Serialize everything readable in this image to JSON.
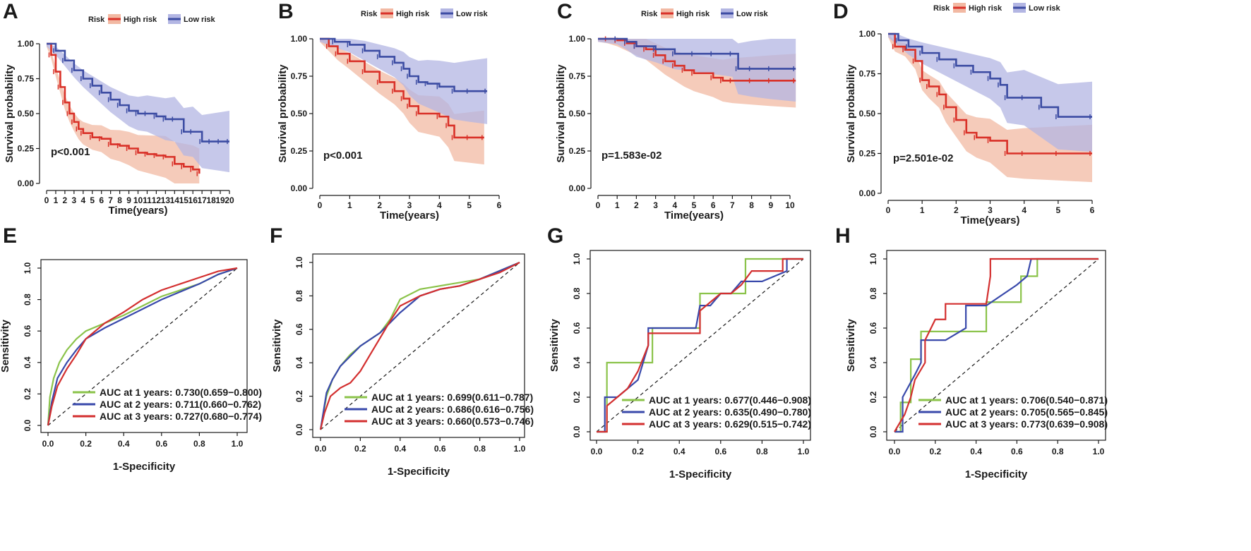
{
  "chart_data": [
    {
      "type": "line",
      "subtype": "kaplan-meier",
      "panel": "A",
      "legend": {
        "title": "Risk",
        "entries": [
          "High risk",
          "Low risk"
        ],
        "position": "top"
      },
      "xlabel": "Time(years)",
      "ylabel": "Survival probability",
      "xticks": [
        "0",
        "1",
        "2",
        "3",
        "4",
        "5",
        "6",
        "7",
        "8",
        "9",
        "10",
        "11",
        "12",
        "13",
        "14",
        "15",
        "16",
        "17",
        "18",
        "19",
        "20"
      ],
      "yticks": [
        "0.00",
        "0.25",
        "0.50",
        "0.75",
        "1.00"
      ],
      "xlim": [
        0,
        20
      ],
      "ylim": [
        0,
        1
      ],
      "pvalue": "p<0.001",
      "series": [
        {
          "name": "High risk",
          "color": "#d93128",
          "band": "#f2b9a3",
          "x": [
            0,
            0.5,
            1,
            1.5,
            2,
            2.5,
            3,
            3.5,
            4,
            5,
            6,
            7,
            8,
            9,
            10,
            11,
            12,
            13,
            14,
            15,
            16,
            16.7
          ],
          "y": [
            1.0,
            0.92,
            0.8,
            0.69,
            0.58,
            0.5,
            0.44,
            0.39,
            0.36,
            0.33,
            0.32,
            0.28,
            0.27,
            0.25,
            0.22,
            0.21,
            0.2,
            0.19,
            0.14,
            0.12,
            0.1,
            0.07
          ]
        },
        {
          "name": "Low risk",
          "color": "#3c4ca3",
          "band": "#b3b6e3",
          "x": [
            0,
            1,
            2,
            3,
            4,
            5,
            6,
            7,
            8,
            9,
            10,
            11,
            12,
            13,
            14,
            15,
            16,
            17,
            18,
            19,
            20
          ],
          "y": [
            1.0,
            0.95,
            0.88,
            0.81,
            0.75,
            0.7,
            0.65,
            0.6,
            0.56,
            0.52,
            0.5,
            0.5,
            0.48,
            0.46,
            0.46,
            0.37,
            0.37,
            0.3,
            0.3,
            0.3,
            0.3
          ]
        }
      ]
    },
    {
      "type": "line",
      "subtype": "kaplan-meier",
      "panel": "B",
      "legend": {
        "title": "Risk",
        "entries": [
          "High risk",
          "Low risk"
        ],
        "position": "top"
      },
      "xlabel": "Time(years)",
      "ylabel": "Survival probability",
      "xticks": [
        "0",
        "1",
        "2",
        "3",
        "4",
        "5",
        "6"
      ],
      "yticks": [
        "0.00",
        "0.25",
        "0.50",
        "0.75",
        "1.00"
      ],
      "xlim": [
        0,
        6
      ],
      "ylim": [
        0,
        1
      ],
      "pvalue": "p<0.001",
      "series": [
        {
          "name": "High risk",
          "color": "#d93128",
          "band": "#f2b9a3",
          "x": [
            0,
            0.3,
            0.6,
            1,
            1.5,
            2,
            2.5,
            2.8,
            3,
            3.3,
            4,
            4.3,
            4.5,
            5,
            5.5
          ],
          "y": [
            1.0,
            0.95,
            0.9,
            0.85,
            0.78,
            0.71,
            0.65,
            0.6,
            0.55,
            0.5,
            0.48,
            0.42,
            0.34,
            0.34,
            0.34
          ]
        },
        {
          "name": "Low risk",
          "color": "#3c4ca3",
          "band": "#b3b6e3",
          "x": [
            0,
            0.5,
            1,
            1.5,
            2,
            2.5,
            2.8,
            3,
            3.3,
            3.6,
            4,
            4.5,
            5,
            5.6
          ],
          "y": [
            1.0,
            0.98,
            0.96,
            0.92,
            0.88,
            0.84,
            0.8,
            0.75,
            0.71,
            0.7,
            0.68,
            0.65,
            0.65,
            0.65
          ]
        }
      ]
    },
    {
      "type": "line",
      "subtype": "kaplan-meier",
      "panel": "C",
      "legend": {
        "title": "Risk",
        "entries": [
          "High risk",
          "Low risk"
        ],
        "position": "top"
      },
      "xlabel": "Time(years)",
      "ylabel": "Survival probability",
      "xticks": [
        "0",
        "1",
        "2",
        "3",
        "4",
        "5",
        "6",
        "7",
        "8",
        "9",
        "10"
      ],
      "yticks": [
        "0.00",
        "0.25",
        "0.50",
        "0.75",
        "1.00"
      ],
      "xlim": [
        0,
        10
      ],
      "ylim": [
        0,
        1
      ],
      "pvalue": "p=1.583e-02",
      "series": [
        {
          "name": "High risk",
          "color": "#d93128",
          "band": "#f2b9a3",
          "x": [
            0,
            0.5,
            1,
            1.5,
            2,
            2.5,
            3,
            3.5,
            4,
            4.5,
            5,
            6,
            6.5,
            7,
            8,
            9,
            10.3
          ],
          "y": [
            1.0,
            1.0,
            0.99,
            0.97,
            0.95,
            0.93,
            0.89,
            0.85,
            0.82,
            0.79,
            0.77,
            0.74,
            0.72,
            0.72,
            0.72,
            0.72,
            0.72
          ]
        },
        {
          "name": "Low risk",
          "color": "#3c4ca3",
          "band": "#b3b6e3",
          "x": [
            0,
            1,
            1.5,
            2,
            3,
            4,
            5,
            6,
            7,
            7.3,
            8,
            9,
            10.3
          ],
          "y": [
            1.0,
            1.0,
            0.98,
            0.95,
            0.93,
            0.9,
            0.9,
            0.9,
            0.9,
            0.8,
            0.8,
            0.8,
            0.8
          ]
        }
      ]
    },
    {
      "type": "line",
      "subtype": "kaplan-meier",
      "panel": "D",
      "legend": {
        "title": "Risk",
        "entries": [
          "High risk",
          "Low risk"
        ],
        "position": "top"
      },
      "xlabel": "Time(years)",
      "ylabel": "Survival probability",
      "xticks": [
        "0",
        "1",
        "2",
        "3",
        "4",
        "5",
        "6"
      ],
      "yticks": [
        "0.00",
        "0.25",
        "0.50",
        "0.75",
        "1.00"
      ],
      "xlim": [
        0,
        6
      ],
      "ylim": [
        0,
        1
      ],
      "pvalue": "p=2.501e-02",
      "series": [
        {
          "name": "High risk",
          "color": "#d93128",
          "band": "#f2b9a3",
          "x": [
            0,
            0.2,
            0.5,
            0.8,
            1,
            1.2,
            1.5,
            1.7,
            2,
            2.3,
            2.6,
            3,
            3.5,
            4,
            5,
            6
          ],
          "y": [
            1.0,
            0.92,
            0.9,
            0.83,
            0.71,
            0.67,
            0.62,
            0.54,
            0.46,
            0.38,
            0.35,
            0.33,
            0.25,
            0.25,
            0.25,
            0.25
          ]
        },
        {
          "name": "Low risk",
          "color": "#3c4ca3",
          "band": "#b3b6e3",
          "x": [
            0,
            0.3,
            0.6,
            1,
            1.5,
            2,
            2.5,
            3,
            3.3,
            3.5,
            4,
            4.5,
            5,
            6
          ],
          "y": [
            1.0,
            0.96,
            0.92,
            0.88,
            0.84,
            0.8,
            0.76,
            0.72,
            0.68,
            0.6,
            0.6,
            0.54,
            0.48,
            0.48
          ]
        }
      ]
    },
    {
      "type": "line",
      "subtype": "roc",
      "panel": "E",
      "xlabel": "1-Specificity",
      "ylabel": "Sensitivity",
      "xticks": [
        "0.0",
        "0.2",
        "0.4",
        "0.6",
        "0.8",
        "1.0"
      ],
      "yticks": [
        "0.0",
        "0.2",
        "0.4",
        "0.6",
        "0.8",
        "1.0"
      ],
      "xlim": [
        0,
        1
      ],
      "ylim": [
        0,
        1
      ],
      "series": [
        {
          "name": "AUC at 1 years: 0.730(0.659−0.800)",
          "color": "#8bc34a",
          "x": [
            0,
            0.01,
            0.03,
            0.06,
            0.1,
            0.15,
            0.2,
            0.3,
            0.4,
            0.5,
            0.6,
            0.7,
            0.8,
            0.9,
            1
          ],
          "y": [
            0,
            0.18,
            0.3,
            0.4,
            0.48,
            0.55,
            0.6,
            0.65,
            0.7,
            0.76,
            0.82,
            0.86,
            0.9,
            0.96,
            1
          ]
        },
        {
          "name": "AUC at 2 years: 0.711(0.660−0.762)",
          "color": "#3949ab",
          "x": [
            0,
            0.02,
            0.05,
            0.1,
            0.15,
            0.2,
            0.3,
            0.4,
            0.5,
            0.6,
            0.7,
            0.8,
            0.9,
            1
          ],
          "y": [
            0,
            0.15,
            0.3,
            0.4,
            0.48,
            0.55,
            0.62,
            0.68,
            0.74,
            0.8,
            0.85,
            0.9,
            0.96,
            1
          ]
        },
        {
          "name": "AUC at 3 years: 0.727(0.680−0.774)",
          "color": "#d32f2f",
          "x": [
            0,
            0.02,
            0.05,
            0.1,
            0.15,
            0.2,
            0.3,
            0.4,
            0.5,
            0.6,
            0.7,
            0.8,
            0.9,
            1
          ],
          "y": [
            0,
            0.12,
            0.25,
            0.36,
            0.45,
            0.55,
            0.65,
            0.72,
            0.8,
            0.86,
            0.9,
            0.94,
            0.98,
            1
          ]
        }
      ]
    },
    {
      "type": "line",
      "subtype": "roc",
      "panel": "F",
      "xlabel": "1-Specificity",
      "ylabel": "Sensitivity",
      "xticks": [
        "0.0",
        "0.2",
        "0.4",
        "0.6",
        "0.8",
        "1.0"
      ],
      "yticks": [
        "0.0",
        "0.2",
        "0.4",
        "0.6",
        "0.8",
        "1.0"
      ],
      "xlim": [
        0,
        1
      ],
      "ylim": [
        0,
        1
      ],
      "series": [
        {
          "name": "AUC at 1 years: 0.699(0.611−0.787)",
          "color": "#8bc34a",
          "x": [
            0,
            0.03,
            0.06,
            0.1,
            0.15,
            0.2,
            0.3,
            0.35,
            0.4,
            0.5,
            0.6,
            0.7,
            0.8,
            0.9,
            1
          ],
          "y": [
            0,
            0.2,
            0.3,
            0.38,
            0.45,
            0.5,
            0.58,
            0.66,
            0.78,
            0.84,
            0.86,
            0.88,
            0.9,
            0.95,
            1
          ]
        },
        {
          "name": "AUC at 2 years: 0.686(0.616−0.756)",
          "color": "#3949ab",
          "x": [
            0,
            0.03,
            0.06,
            0.1,
            0.15,
            0.2,
            0.3,
            0.4,
            0.5,
            0.6,
            0.7,
            0.8,
            0.9,
            1
          ],
          "y": [
            0,
            0.22,
            0.3,
            0.38,
            0.44,
            0.5,
            0.58,
            0.7,
            0.8,
            0.84,
            0.86,
            0.9,
            0.95,
            1
          ]
        },
        {
          "name": "AUC at 3 years: 0.660(0.573−0.746)",
          "color": "#d32f2f",
          "x": [
            0,
            0.02,
            0.05,
            0.1,
            0.15,
            0.2,
            0.25,
            0.3,
            0.35,
            0.4,
            0.5,
            0.6,
            0.7,
            0.8,
            0.9,
            1
          ],
          "y": [
            0,
            0.1,
            0.2,
            0.25,
            0.28,
            0.35,
            0.45,
            0.55,
            0.65,
            0.74,
            0.8,
            0.84,
            0.86,
            0.9,
            0.94,
            1
          ]
        }
      ]
    },
    {
      "type": "line",
      "subtype": "roc",
      "panel": "G",
      "xlabel": "1-Specificity",
      "ylabel": "Sensitivity",
      "xticks": [
        "0.0",
        "0.2",
        "0.4",
        "0.6",
        "0.8",
        "1.0"
      ],
      "yticks": [
        "0.0",
        "0.2",
        "0.4",
        "0.6",
        "0.8",
        "1.0"
      ],
      "xlim": [
        0,
        1
      ],
      "ylim": [
        0,
        1
      ],
      "series": [
        {
          "name": "AUC at 1 years: 0.677(0.446−0.908)",
          "color": "#8bc34a",
          "x": [
            0,
            0.05,
            0.05,
            0.27,
            0.27,
            0.5,
            0.5,
            0.72,
            0.72,
            1
          ],
          "y": [
            0,
            0,
            0.4,
            0.4,
            0.6,
            0.6,
            0.8,
            0.8,
            1,
            1
          ]
        },
        {
          "name": "AUC at 2 years: 0.635(0.490−0.780)",
          "color": "#3949ab",
          "x": [
            0,
            0.04,
            0.04,
            0.1,
            0.15,
            0.2,
            0.25,
            0.25,
            0.48,
            0.5,
            0.55,
            0.6,
            0.65,
            0.7,
            0.8,
            0.92,
            0.92,
            1
          ],
          "y": [
            0,
            0,
            0.2,
            0.2,
            0.25,
            0.3,
            0.5,
            0.6,
            0.6,
            0.73,
            0.73,
            0.8,
            0.8,
            0.87,
            0.87,
            0.93,
            1,
            1
          ]
        },
        {
          "name": "AUC at 3 years: 0.629(0.515−0.742)",
          "color": "#d32f2f",
          "x": [
            0,
            0.05,
            0.05,
            0.15,
            0.2,
            0.25,
            0.25,
            0.5,
            0.5,
            0.6,
            0.65,
            0.7,
            0.75,
            0.9,
            0.9,
            1
          ],
          "y": [
            0,
            0,
            0.15,
            0.25,
            0.35,
            0.5,
            0.57,
            0.57,
            0.7,
            0.8,
            0.8,
            0.85,
            0.93,
            0.93,
            1,
            1
          ]
        }
      ]
    },
    {
      "type": "line",
      "subtype": "roc",
      "panel": "H",
      "xlabel": "1-Specificity",
      "ylabel": "Sensitivity",
      "xticks": [
        "0.0",
        "0.2",
        "0.4",
        "0.6",
        "0.8",
        "1.0"
      ],
      "yticks": [
        "0.0",
        "0.2",
        "0.4",
        "0.6",
        "0.8",
        "1.0"
      ],
      "xlim": [
        0,
        1
      ],
      "ylim": [
        0,
        1
      ],
      "series": [
        {
          "name": "AUC at 1 years: 0.706(0.540−0.871)",
          "color": "#8bc34a",
          "x": [
            0,
            0.03,
            0.03,
            0.08,
            0.08,
            0.13,
            0.13,
            0.2,
            0.2,
            0.45,
            0.45,
            0.62,
            0.62,
            0.7,
            0.7,
            1
          ],
          "y": [
            0,
            0,
            0.17,
            0.17,
            0.42,
            0.42,
            0.58,
            0.58,
            0.58,
            0.58,
            0.75,
            0.75,
            0.9,
            0.9,
            1,
            1
          ]
        },
        {
          "name": "AUC at 2 years: 0.705(0.565−0.845)",
          "color": "#3949ab",
          "x": [
            0,
            0.04,
            0.04,
            0.1,
            0.13,
            0.13,
            0.25,
            0.35,
            0.35,
            0.45,
            0.6,
            0.65,
            0.67,
            1
          ],
          "y": [
            0,
            0,
            0.2,
            0.33,
            0.4,
            0.53,
            0.53,
            0.6,
            0.73,
            0.73,
            0.85,
            0.9,
            1,
            1
          ]
        },
        {
          "name": "AUC at 3 years: 0.773(0.639−0.908)",
          "color": "#d32f2f",
          "x": [
            0,
            0.05,
            0.08,
            0.1,
            0.15,
            0.15,
            0.2,
            0.25,
            0.25,
            0.45,
            0.47,
            0.47,
            1
          ],
          "y": [
            0,
            0.1,
            0.2,
            0.3,
            0.4,
            0.53,
            0.65,
            0.65,
            0.74,
            0.74,
            0.9,
            1,
            1
          ]
        }
      ]
    }
  ]
}
